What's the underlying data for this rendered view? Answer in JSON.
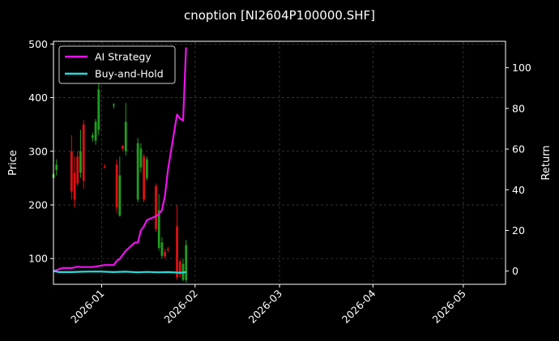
{
  "chart_data": {
    "type": "candlestick_line",
    "title": "cnoption [NI2604P100000.SHF]",
    "ylabel_left": "Price",
    "ylabel_right": "Return",
    "ylim_left": [
      52,
      505
    ],
    "ylim_right": [
      -6.5,
      113
    ],
    "xlim": [
      "2025-12-16",
      "2026-05-15"
    ],
    "x_ticks": [
      "2026-01",
      "2026-02",
      "2026-03",
      "2026-04",
      "2026-05"
    ],
    "x_tick_dates": [
      "2026-01-01",
      "2026-02-01",
      "2026-03-01",
      "2026-04-01",
      "2026-05-01"
    ],
    "y_ticks_left": [
      100,
      200,
      300,
      400,
      500
    ],
    "y_ticks_right": [
      0,
      20,
      40,
      60,
      80,
      100
    ],
    "grid": true,
    "legend_position": "top-left",
    "colors": {
      "background": "#000000",
      "ai_strategy": "#ee11ee",
      "buy_and_hold": "#22dddd",
      "up_candle": "#1f9e1f",
      "down_candle": "#e01010",
      "grid": "#444444"
    },
    "series": [
      {
        "name": "AI Strategy",
        "axis": "right",
        "dates": [
          "2025-12-16",
          "2025-12-18",
          "2025-12-19",
          "2025-12-22",
          "2025-12-23",
          "2025-12-24",
          "2025-12-25",
          "2025-12-26",
          "2025-12-29",
          "2025-12-30",
          "2025-12-31",
          "2026-01-02",
          "2026-01-05",
          "2026-01-06",
          "2026-01-07",
          "2026-01-08",
          "2026-01-09",
          "2026-01-12",
          "2026-01-13",
          "2026-01-14",
          "2026-01-15",
          "2026-01-16",
          "2026-01-19",
          "2026-01-20",
          "2026-01-21",
          "2026-01-22",
          "2026-01-23",
          "2026-01-26",
          "2026-01-27",
          "2026-01-28",
          "2026-01-29"
        ],
        "values": [
          0,
          1,
          1.5,
          1.5,
          1.8,
          2.2,
          2,
          2,
          2,
          2.2,
          2.5,
          3,
          3,
          5,
          6,
          8,
          10,
          14,
          14,
          20,
          22,
          25,
          27,
          28,
          30,
          37,
          50,
          77,
          75,
          74,
          110
        ]
      },
      {
        "name": "Buy-and-Hold",
        "axis": "right",
        "dates": [
          "2025-12-16",
          "2025-12-18",
          "2025-12-22",
          "2025-12-26",
          "2025-12-31",
          "2026-01-05",
          "2026-01-09",
          "2026-01-13",
          "2026-01-16",
          "2026-01-20",
          "2026-01-23",
          "2026-01-27",
          "2026-01-29"
        ],
        "values": [
          0,
          -0.5,
          -0.5,
          -0.3,
          -0.2,
          -0.5,
          -0.3,
          -0.6,
          -0.4,
          -0.6,
          -0.5,
          -0.8,
          -0.5
        ]
      }
    ],
    "candles": [
      {
        "date": "2025-12-16",
        "open": 250,
        "high": 275,
        "low": 245,
        "close": 258
      },
      {
        "date": "2025-12-17",
        "open": 265,
        "high": 285,
        "low": 255,
        "close": 275
      },
      {
        "date": "2025-12-22",
        "open": 300,
        "high": 330,
        "low": 210,
        "close": 225
      },
      {
        "date": "2025-12-23",
        "open": 260,
        "high": 290,
        "low": 195,
        "close": 210
      },
      {
        "date": "2025-12-24",
        "open": 290,
        "high": 300,
        "low": 235,
        "close": 240
      },
      {
        "date": "2025-12-25",
        "open": 260,
        "high": 340,
        "low": 250,
        "close": 300
      },
      {
        "date": "2025-12-26",
        "open": 350,
        "high": 358,
        "low": 230,
        "close": 245
      },
      {
        "date": "2025-12-29",
        "open": 325,
        "high": 335,
        "low": 318,
        "close": 330
      },
      {
        "date": "2025-12-30",
        "open": 320,
        "high": 360,
        "low": 312,
        "close": 355
      },
      {
        "date": "2025-12-31",
        "open": 340,
        "high": 430,
        "low": 330,
        "close": 415
      },
      {
        "date": "2026-01-02",
        "open": 272,
        "high": 276,
        "low": 268,
        "close": 270
      },
      {
        "date": "2026-01-05",
        "open": 385,
        "high": 390,
        "low": 380,
        "close": 387
      },
      {
        "date": "2026-01-06",
        "open": 275,
        "high": 285,
        "low": 185,
        "close": 195
      },
      {
        "date": "2026-01-07",
        "open": 180,
        "high": 290,
        "low": 178,
        "close": 255
      },
      {
        "date": "2026-01-08",
        "open": 310,
        "high": 312,
        "low": 302,
        "close": 305
      },
      {
        "date": "2026-01-09",
        "open": 300,
        "high": 390,
        "low": 292,
        "close": 355
      },
      {
        "date": "2026-01-13",
        "open": 210,
        "high": 325,
        "low": 205,
        "close": 315
      },
      {
        "date": "2026-01-14",
        "open": 270,
        "high": 315,
        "low": 260,
        "close": 305
      },
      {
        "date": "2026-01-15",
        "open": 290,
        "high": 295,
        "low": 205,
        "close": 210
      },
      {
        "date": "2026-01-16",
        "open": 250,
        "high": 290,
        "low": 245,
        "close": 285
      },
      {
        "date": "2026-01-19",
        "open": 235,
        "high": 240,
        "low": 150,
        "close": 155
      },
      {
        "date": "2026-01-20",
        "open": 120,
        "high": 220,
        "low": 115,
        "close": 190
      },
      {
        "date": "2026-01-21",
        "open": 105,
        "high": 140,
        "low": 100,
        "close": 130
      },
      {
        "date": "2026-01-22",
        "open": 112,
        "high": 118,
        "low": 100,
        "close": 104
      },
      {
        "date": "2026-01-23",
        "open": 118,
        "high": 122,
        "low": 112,
        "close": 116
      },
      {
        "date": "2026-01-26",
        "open": 160,
        "high": 200,
        "low": 60,
        "close": 65
      },
      {
        "date": "2026-01-27",
        "open": 95,
        "high": 98,
        "low": 65,
        "close": 70
      },
      {
        "date": "2026-01-28",
        "open": 60,
        "high": 100,
        "low": 58,
        "close": 90
      },
      {
        "date": "2026-01-29",
        "open": 60,
        "high": 135,
        "low": 55,
        "close": 125
      }
    ]
  }
}
